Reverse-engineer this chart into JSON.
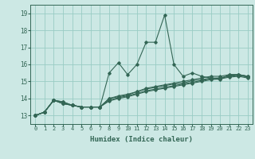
{
  "title": "",
  "xlabel": "Humidex (Indice chaleur)",
  "background_color": "#cce8e4",
  "grid_color": "#99ccc4",
  "line_color": "#336655",
  "xlim": [
    -0.5,
    23.5
  ],
  "ylim": [
    12.5,
    19.5
  ],
  "yticks": [
    13,
    14,
    15,
    16,
    17,
    18,
    19
  ],
  "xticks": [
    0,
    1,
    2,
    3,
    4,
    5,
    6,
    7,
    8,
    9,
    10,
    11,
    12,
    13,
    14,
    15,
    16,
    17,
    18,
    19,
    20,
    21,
    22,
    23
  ],
  "series": [
    [
      13.0,
      13.2,
      13.9,
      13.8,
      13.6,
      13.5,
      13.5,
      13.5,
      15.5,
      16.1,
      15.4,
      16.0,
      17.3,
      17.3,
      18.9,
      16.0,
      15.3,
      15.5,
      15.3,
      15.2,
      15.1,
      15.4,
      15.4,
      15.3
    ],
    [
      13.0,
      13.2,
      13.9,
      13.8,
      13.6,
      13.5,
      13.5,
      13.5,
      14.0,
      14.1,
      14.2,
      14.4,
      14.6,
      14.7,
      14.8,
      14.9,
      15.0,
      15.1,
      15.2,
      15.3,
      15.3,
      15.4,
      15.4,
      15.3
    ],
    [
      13.0,
      13.2,
      13.9,
      13.7,
      13.6,
      13.5,
      13.5,
      13.5,
      14.0,
      14.15,
      14.25,
      14.4,
      14.55,
      14.65,
      14.75,
      14.85,
      14.9,
      15.05,
      15.1,
      15.2,
      15.2,
      15.35,
      15.4,
      15.3
    ],
    [
      13.0,
      13.2,
      13.9,
      13.7,
      13.6,
      13.5,
      13.5,
      13.5,
      13.9,
      14.05,
      14.15,
      14.3,
      14.45,
      14.55,
      14.65,
      14.75,
      14.85,
      14.95,
      15.05,
      15.15,
      15.2,
      15.3,
      15.35,
      15.25
    ],
    [
      13.0,
      13.2,
      13.9,
      13.7,
      13.6,
      13.5,
      13.5,
      13.5,
      13.85,
      14.0,
      14.1,
      14.25,
      14.4,
      14.5,
      14.6,
      14.7,
      14.8,
      14.9,
      15.0,
      15.1,
      15.15,
      15.25,
      15.3,
      15.2
    ]
  ]
}
